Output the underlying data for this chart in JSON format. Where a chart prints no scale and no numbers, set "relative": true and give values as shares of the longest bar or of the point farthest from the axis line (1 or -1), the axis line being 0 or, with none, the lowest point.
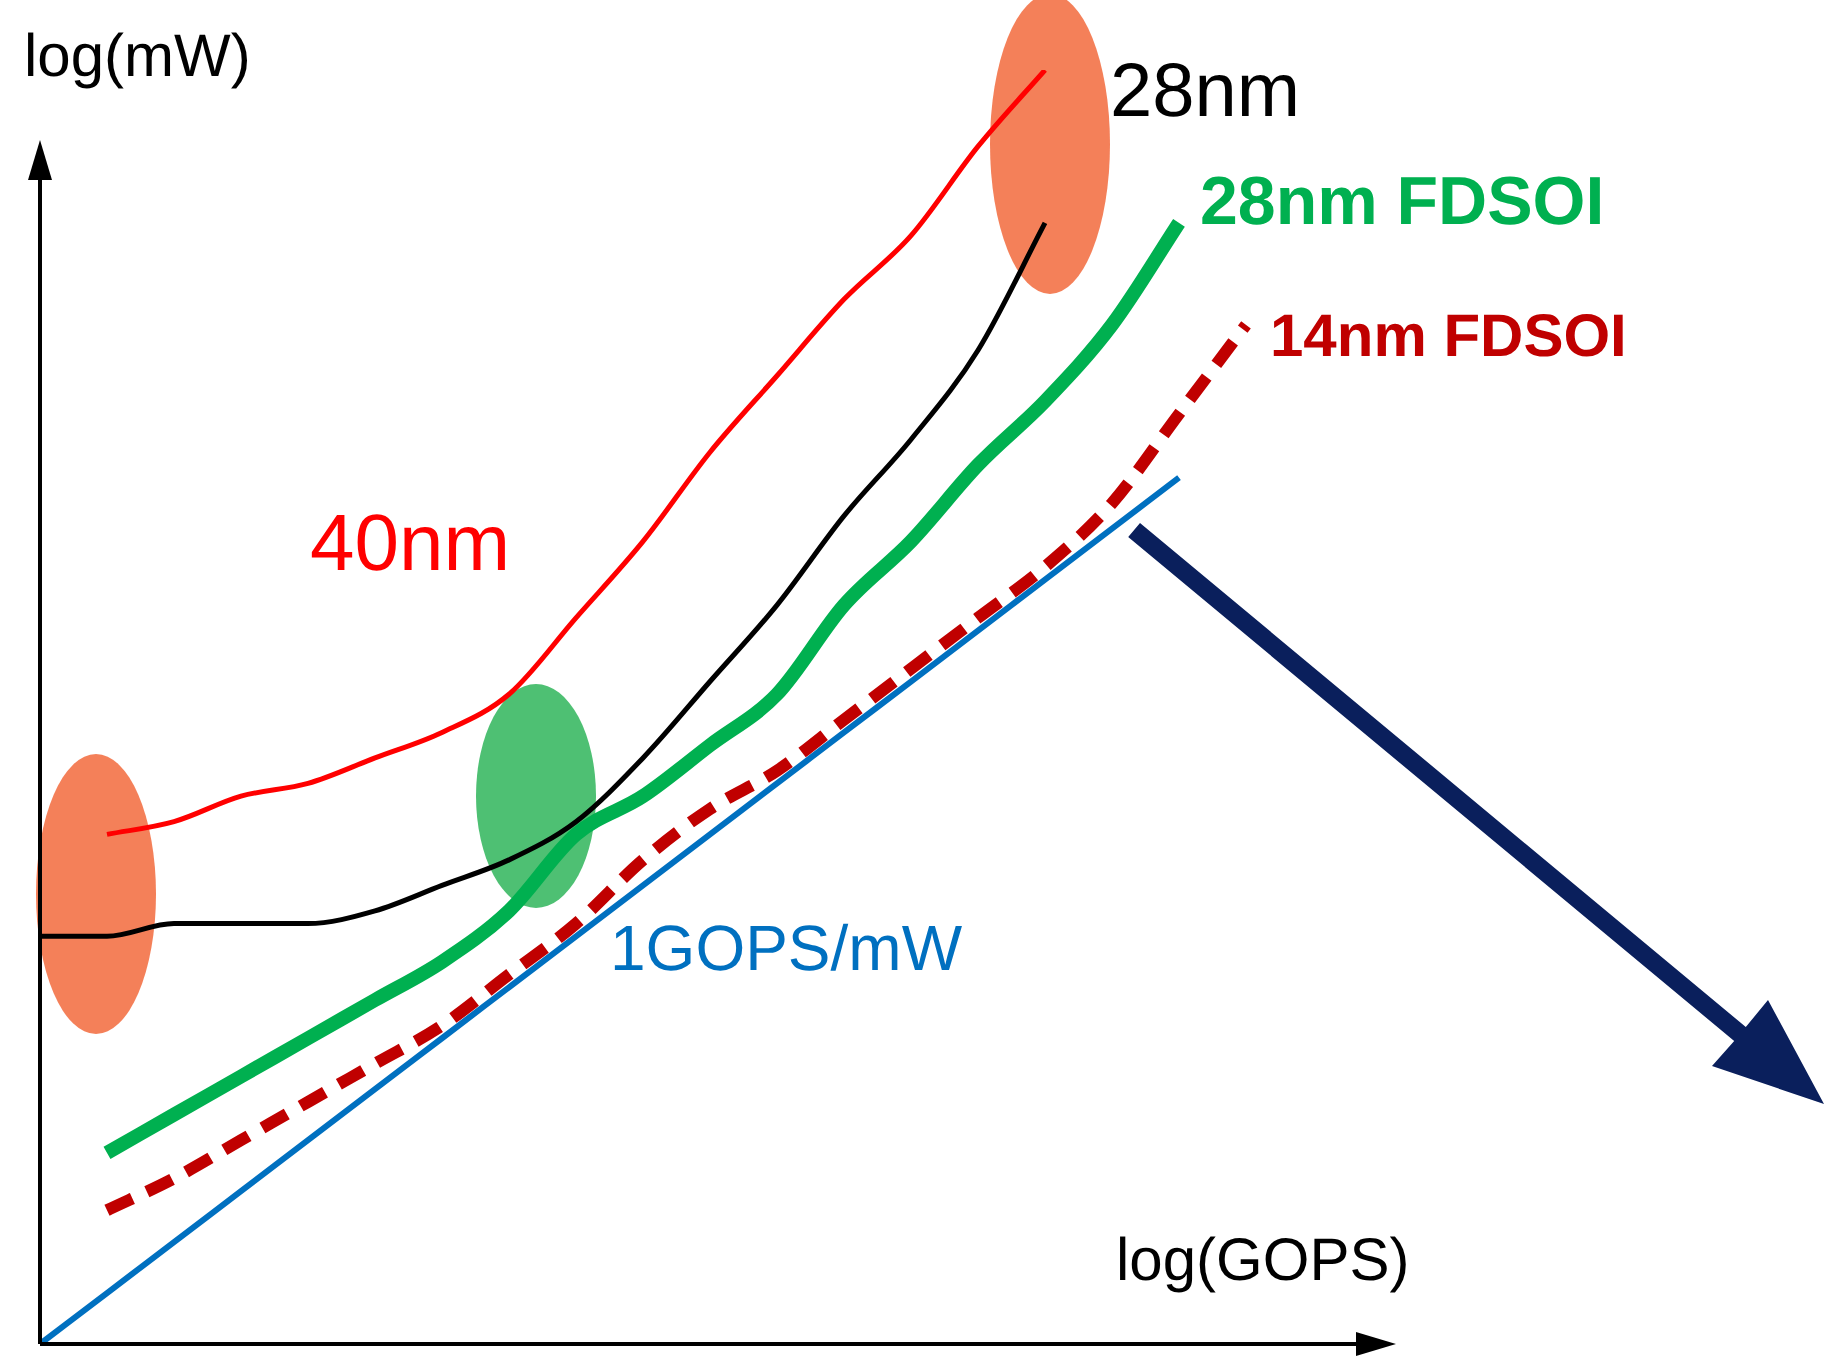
{
  "chart_data": {
    "type": "line",
    "relative": true,
    "xlabel": "log(GOPS)",
    "ylabel": "log(mW)",
    "legend": false,
    "tick_labels": false,
    "marker": "none",
    "categories": [
      null,
      null,
      null,
      null,
      null,
      null,
      null,
      null,
      null,
      null,
      null,
      null,
      null,
      null,
      null,
      null,
      null,
      null,
      null,
      null,
      null
    ],
    "series": [
      {
        "name": "40nm",
        "color": "#ff0000",
        "values": [
          null,
          0.4,
          0.41,
          0.43,
          0.44,
          0.46,
          0.48,
          0.51,
          0.57,
          0.63,
          0.7,
          0.76,
          0.82,
          0.87,
          0.94,
          1.0,
          null,
          null,
          null,
          null,
          null
        ]
      },
      {
        "name": "28nm",
        "color": "#000000",
        "values": [
          0.32,
          0.32,
          0.33,
          0.33,
          0.33,
          0.34,
          0.36,
          0.38,
          0.41,
          0.46,
          0.52,
          0.58,
          0.65,
          0.71,
          0.78,
          0.88,
          null,
          null,
          null,
          null,
          null
        ]
      },
      {
        "name": "28nm FDSOI",
        "color": "#00b050",
        "values": [
          null,
          0.15,
          0.18,
          0.21,
          0.24,
          0.27,
          0.3,
          0.34,
          0.4,
          0.43,
          0.47,
          0.51,
          0.58,
          0.63,
          0.69,
          0.74,
          0.8,
          0.88,
          null,
          null,
          null
        ]
      },
      {
        "name": "14nm FDSOI",
        "color": "#c00000",
        "line_style": "dashed",
        "values": [
          null,
          0.105,
          0.13,
          0.16,
          0.19,
          0.22,
          0.25,
          0.29,
          0.33,
          0.38,
          0.42,
          0.45,
          0.49,
          0.53,
          0.57,
          0.61,
          0.66,
          0.73,
          0.8,
          null,
          null
        ]
      },
      {
        "name": "1GOPS/mW",
        "color": "#0070c0",
        "values": [
          0,
          0.04,
          0.08,
          0.12,
          0.16,
          0.2,
          0.24,
          0.28,
          0.32,
          0.36,
          0.4,
          0.44,
          0.48,
          0.52,
          0.56,
          0.6,
          0.64,
          0.68,
          null,
          null,
          null
        ]
      }
    ]
  }
}
